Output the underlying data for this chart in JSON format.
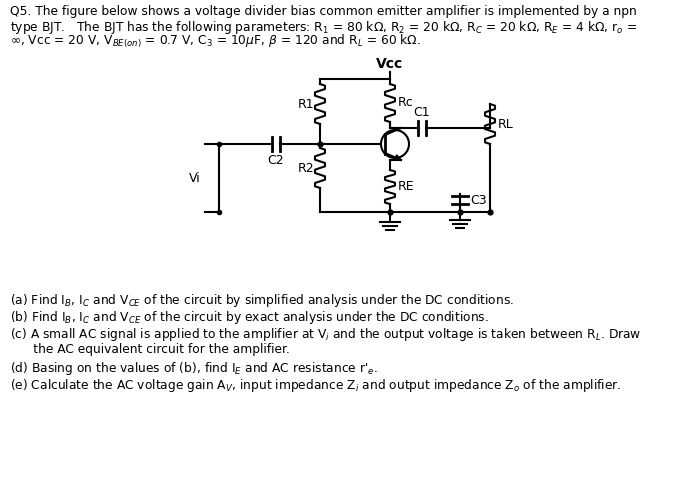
{
  "background": "#ffffff",
  "line_color": "#000000",
  "vcc_label": "Vcc",
  "r1_label": "R1",
  "r2_label": "R2",
  "rc_label": "Rc",
  "re_label": "RE",
  "rl_label": "RL",
  "c1_label": "C1",
  "c2_label": "C2",
  "c3_label": "C3",
  "vi_label": "Vi"
}
